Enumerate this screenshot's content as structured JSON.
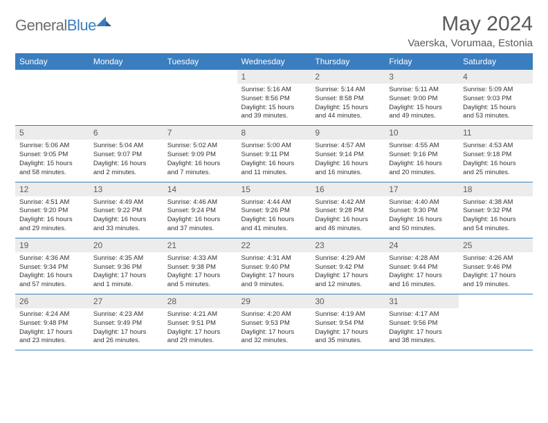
{
  "brand": {
    "part1": "General",
    "part2": "Blue"
  },
  "title": "May 2024",
  "location": "Vaerska, Vorumaa, Estonia",
  "colors": {
    "header_bg": "#3a7ebf",
    "header_text": "#ffffff",
    "daynum_bg": "#ececec",
    "text": "#5a5a5a",
    "rule": "#3a7ebf"
  },
  "day_headers": [
    "Sunday",
    "Monday",
    "Tuesday",
    "Wednesday",
    "Thursday",
    "Friday",
    "Saturday"
  ],
  "weeks": [
    [
      {
        "empty": true
      },
      {
        "empty": true
      },
      {
        "empty": true
      },
      {
        "num": "1",
        "sunrise": "5:16 AM",
        "sunset": "8:56 PM",
        "daylight": "15 hours and 39 minutes."
      },
      {
        "num": "2",
        "sunrise": "5:14 AM",
        "sunset": "8:58 PM",
        "daylight": "15 hours and 44 minutes."
      },
      {
        "num": "3",
        "sunrise": "5:11 AM",
        "sunset": "9:00 PM",
        "daylight": "15 hours and 49 minutes."
      },
      {
        "num": "4",
        "sunrise": "5:09 AM",
        "sunset": "9:03 PM",
        "daylight": "15 hours and 53 minutes."
      }
    ],
    [
      {
        "num": "5",
        "sunrise": "5:06 AM",
        "sunset": "9:05 PM",
        "daylight": "15 hours and 58 minutes."
      },
      {
        "num": "6",
        "sunrise": "5:04 AM",
        "sunset": "9:07 PM",
        "daylight": "16 hours and 2 minutes."
      },
      {
        "num": "7",
        "sunrise": "5:02 AM",
        "sunset": "9:09 PM",
        "daylight": "16 hours and 7 minutes."
      },
      {
        "num": "8",
        "sunrise": "5:00 AM",
        "sunset": "9:11 PM",
        "daylight": "16 hours and 11 minutes."
      },
      {
        "num": "9",
        "sunrise": "4:57 AM",
        "sunset": "9:14 PM",
        "daylight": "16 hours and 16 minutes."
      },
      {
        "num": "10",
        "sunrise": "4:55 AM",
        "sunset": "9:16 PM",
        "daylight": "16 hours and 20 minutes."
      },
      {
        "num": "11",
        "sunrise": "4:53 AM",
        "sunset": "9:18 PM",
        "daylight": "16 hours and 25 minutes."
      }
    ],
    [
      {
        "num": "12",
        "sunrise": "4:51 AM",
        "sunset": "9:20 PM",
        "daylight": "16 hours and 29 minutes."
      },
      {
        "num": "13",
        "sunrise": "4:49 AM",
        "sunset": "9:22 PM",
        "daylight": "16 hours and 33 minutes."
      },
      {
        "num": "14",
        "sunrise": "4:46 AM",
        "sunset": "9:24 PM",
        "daylight": "16 hours and 37 minutes."
      },
      {
        "num": "15",
        "sunrise": "4:44 AM",
        "sunset": "9:26 PM",
        "daylight": "16 hours and 41 minutes."
      },
      {
        "num": "16",
        "sunrise": "4:42 AM",
        "sunset": "9:28 PM",
        "daylight": "16 hours and 46 minutes."
      },
      {
        "num": "17",
        "sunrise": "4:40 AM",
        "sunset": "9:30 PM",
        "daylight": "16 hours and 50 minutes."
      },
      {
        "num": "18",
        "sunrise": "4:38 AM",
        "sunset": "9:32 PM",
        "daylight": "16 hours and 54 minutes."
      }
    ],
    [
      {
        "num": "19",
        "sunrise": "4:36 AM",
        "sunset": "9:34 PM",
        "daylight": "16 hours and 57 minutes."
      },
      {
        "num": "20",
        "sunrise": "4:35 AM",
        "sunset": "9:36 PM",
        "daylight": "17 hours and 1 minute."
      },
      {
        "num": "21",
        "sunrise": "4:33 AM",
        "sunset": "9:38 PM",
        "daylight": "17 hours and 5 minutes."
      },
      {
        "num": "22",
        "sunrise": "4:31 AM",
        "sunset": "9:40 PM",
        "daylight": "17 hours and 9 minutes."
      },
      {
        "num": "23",
        "sunrise": "4:29 AM",
        "sunset": "9:42 PM",
        "daylight": "17 hours and 12 minutes."
      },
      {
        "num": "24",
        "sunrise": "4:28 AM",
        "sunset": "9:44 PM",
        "daylight": "17 hours and 16 minutes."
      },
      {
        "num": "25",
        "sunrise": "4:26 AM",
        "sunset": "9:46 PM",
        "daylight": "17 hours and 19 minutes."
      }
    ],
    [
      {
        "num": "26",
        "sunrise": "4:24 AM",
        "sunset": "9:48 PM",
        "daylight": "17 hours and 23 minutes."
      },
      {
        "num": "27",
        "sunrise": "4:23 AM",
        "sunset": "9:49 PM",
        "daylight": "17 hours and 26 minutes."
      },
      {
        "num": "28",
        "sunrise": "4:21 AM",
        "sunset": "9:51 PM",
        "daylight": "17 hours and 29 minutes."
      },
      {
        "num": "29",
        "sunrise": "4:20 AM",
        "sunset": "9:53 PM",
        "daylight": "17 hours and 32 minutes."
      },
      {
        "num": "30",
        "sunrise": "4:19 AM",
        "sunset": "9:54 PM",
        "daylight": "17 hours and 35 minutes."
      },
      {
        "num": "31",
        "sunrise": "4:17 AM",
        "sunset": "9:56 PM",
        "daylight": "17 hours and 38 minutes."
      },
      {
        "empty": true
      }
    ]
  ]
}
